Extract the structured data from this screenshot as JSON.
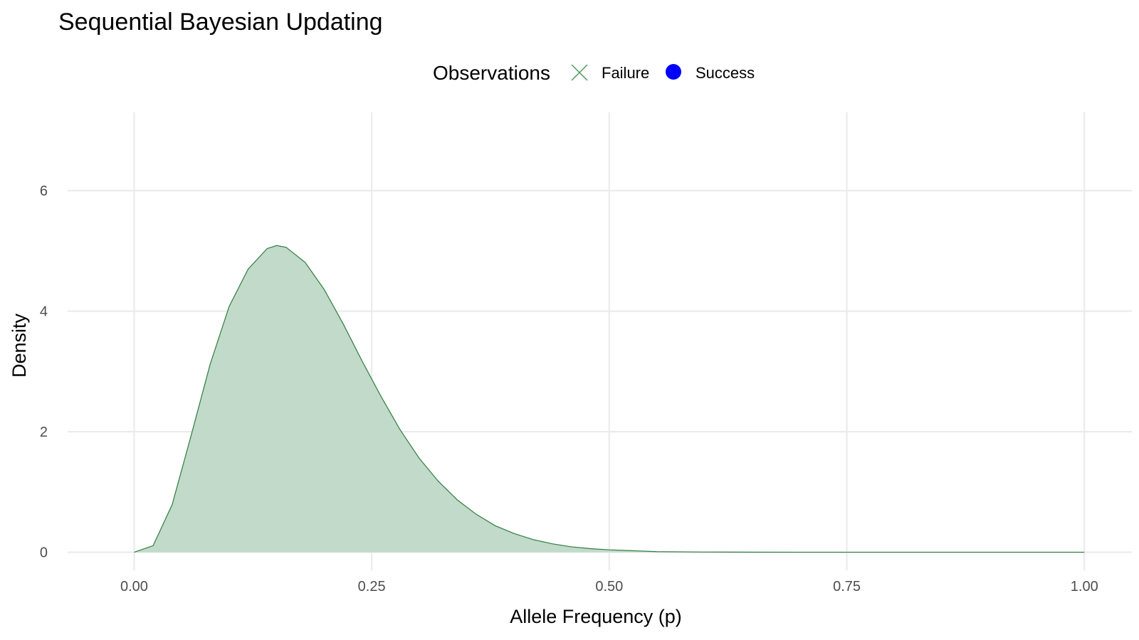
{
  "chart_data": {
    "type": "area",
    "title": "Sequential Bayesian Updating",
    "xlabel": "Allele Frequency (p)",
    "ylabel": "Density",
    "xlim": [
      -0.07,
      1.05
    ],
    "ylim": [
      -0.3,
      7.3
    ],
    "x_ticks": [
      0,
      0.25,
      0.5,
      0.75,
      1
    ],
    "x_tick_labels": [
      "0.00",
      "0.25",
      "0.50",
      "0.75",
      "1.00"
    ],
    "y_ticks": [
      0,
      2,
      4,
      6
    ],
    "y_tick_labels": [
      "0",
      "2",
      "4",
      "6"
    ],
    "grid": true,
    "legend": {
      "title": "Observations",
      "position": "top",
      "entries": [
        {
          "label": "Failure",
          "shape": "cross",
          "color": "#4a9a5a"
        },
        {
          "label": "Success",
          "shape": "circle",
          "color": "#0000ff"
        }
      ]
    },
    "fill_color": "#c1dac9",
    "line_color": "#2e7d3f",
    "series": [
      {
        "x": [
          0,
          0.02,
          0.04,
          0.06,
          0.08,
          0.1,
          0.12,
          0.14,
          0.15,
          0.16,
          0.18,
          0.2,
          0.22,
          0.24,
          0.26,
          0.28,
          0.3,
          0.32,
          0.34,
          0.36,
          0.38,
          0.4,
          0.42,
          0.44,
          0.46,
          0.48,
          0.5,
          0.55,
          0.6,
          0.65,
          0.7,
          0.75,
          0.8,
          0.85,
          0.9,
          0.95,
          1.0
        ],
        "y": [
          0,
          0.11,
          0.79,
          1.94,
          3.12,
          4.08,
          4.7,
          5.04,
          5.09,
          5.06,
          4.81,
          4.36,
          3.79,
          3.17,
          2.58,
          2.03,
          1.56,
          1.18,
          0.87,
          0.63,
          0.44,
          0.31,
          0.21,
          0.14,
          0.09,
          0.06,
          0.04,
          0.01,
          0.003,
          0.001,
          0,
          0,
          0,
          0,
          0,
          0,
          0
        ]
      }
    ]
  }
}
